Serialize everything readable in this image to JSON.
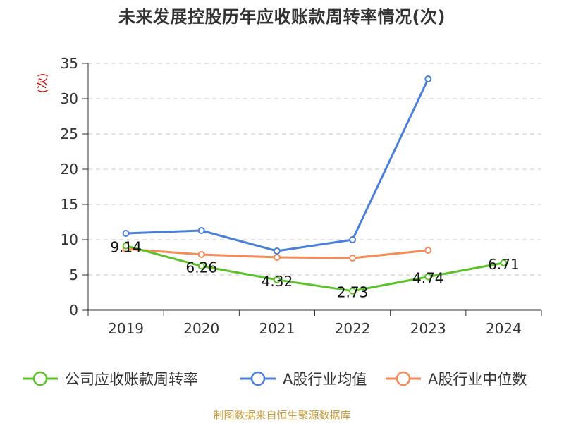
{
  "chart_data": {
    "type": "line",
    "title": "未来发展控股历年应收账款周转率情况(次)",
    "ylabel": "(次)",
    "categories": [
      "2019",
      "2020",
      "2021",
      "2022",
      "2023",
      "2024"
    ],
    "ylim": [
      0,
      35
    ],
    "yticks": [
      0,
      5,
      10,
      15,
      20,
      25,
      30,
      35
    ],
    "grid": true,
    "legend_position": "bottom",
    "series": [
      {
        "name": "公司应收账款周转率",
        "color": "#5bc22a",
        "values": [
          9.14,
          6.26,
          4.32,
          2.73,
          4.74,
          6.71
        ],
        "labels": [
          "9.14",
          "6.26",
          "4.32",
          "2.73",
          "4.74",
          "6.71"
        ]
      },
      {
        "name": "A股行业均值",
        "color": "#4a7fdc",
        "values": [
          10.9,
          11.3,
          8.4,
          10.0,
          32.8,
          null
        ]
      },
      {
        "name": "A股行业中位数",
        "color": "#f58b57",
        "values": [
          8.7,
          7.9,
          7.5,
          7.4,
          8.5,
          null
        ]
      }
    ]
  },
  "footer": {
    "source": "制图数据来自恒生聚源数据库"
  }
}
